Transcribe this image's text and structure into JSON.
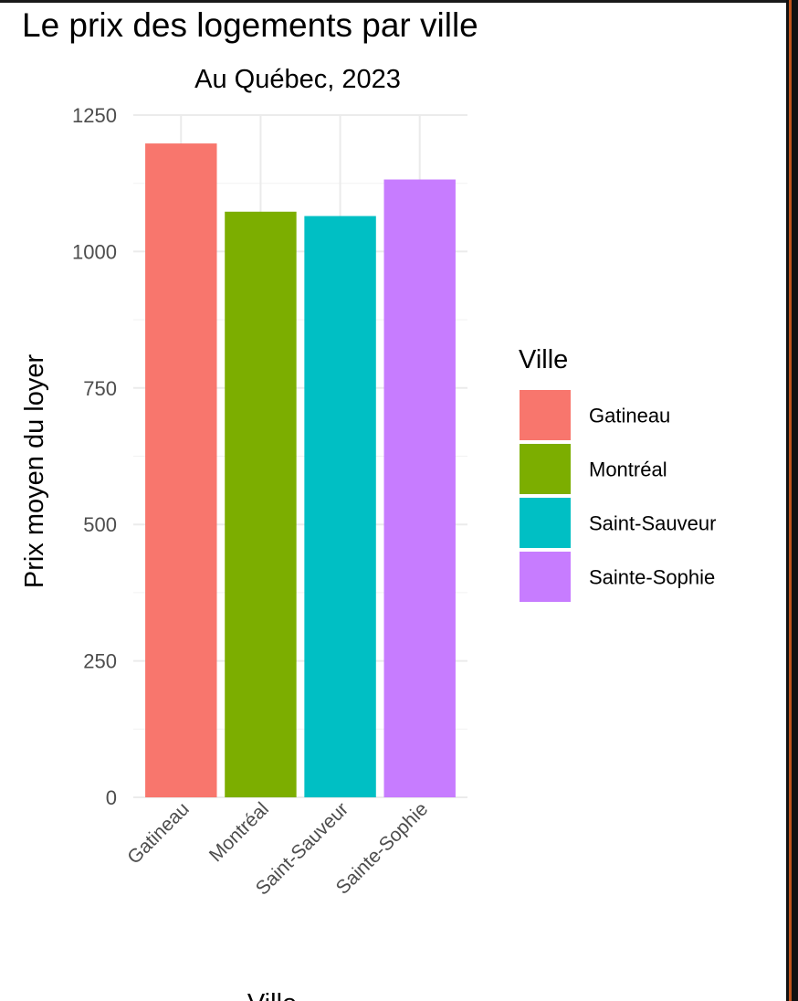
{
  "chart_data": {
    "type": "bar",
    "title": "Le prix des logements par ville",
    "subtitle": "Au Québec, 2023",
    "xlabel": "Ville",
    "ylabel": "Prix moyen du loyer",
    "categories": [
      "Gatineau",
      "Montréal",
      "Saint-Sauveur",
      "Sainte-Sophie"
    ],
    "values": [
      1198,
      1073,
      1065,
      1132
    ],
    "colors": [
      "#F8766D",
      "#7CAE00",
      "#00BFC4",
      "#C77CFF"
    ],
    "ylim": [
      0,
      1250
    ],
    "yticks": [
      0,
      250,
      500,
      750,
      1000,
      1250
    ],
    "grid": true,
    "legend": {
      "title": "Ville",
      "position": "right",
      "items": [
        "Gatineau",
        "Montréal",
        "Saint-Sauveur",
        "Sainte-Sophie"
      ]
    }
  }
}
